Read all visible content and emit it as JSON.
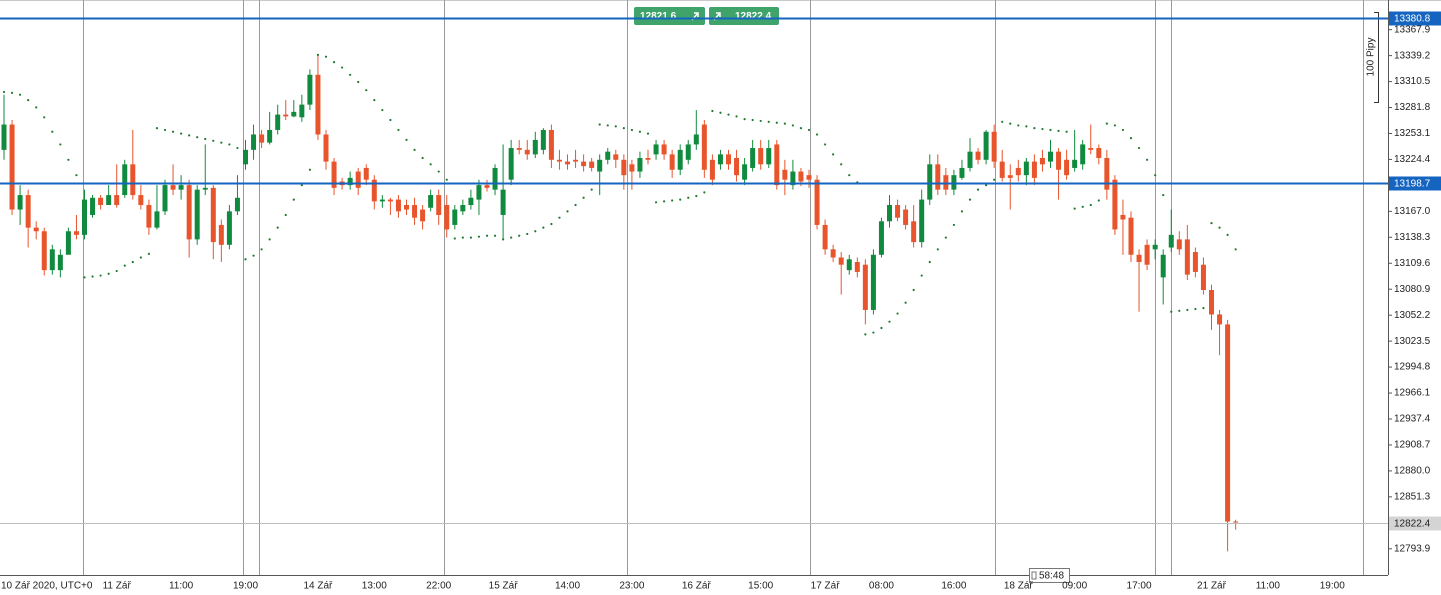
{
  "chart_data": {
    "type": "candlestick",
    "up_color": "#108a3e",
    "down_color": "#e8542b",
    "sar_color": "#1f7a30",
    "ylim": [
      12764.9,
      13400.7
    ],
    "yticks": [
      13367.9,
      13339.2,
      13310.5,
      13281.8,
      13253.1,
      13224.4,
      {
        "value": 13167,
        "label": "13167.0"
      },
      13138.3,
      13109.6,
      13080.9,
      13052.2,
      13023.5,
      12994.8,
      12966.1,
      12937.4,
      12908.7,
      {
        "value": 12880,
        "label": "12880.0"
      },
      12851.3,
      12793.9
    ],
    "hlines": [
      {
        "value": 13380.8,
        "color": "#1565c0"
      },
      {
        "value": 13198.7,
        "color": "#1565c0"
      }
    ],
    "current_price": {
      "value": 12822.4,
      "color": "#bdbdbd"
    },
    "quote_panel": {
      "bid": "12821.6",
      "ask": "12822.4"
    },
    "countdown": "58:48",
    "scale_label": "100 Pipy",
    "categories": [
      "10 Zář 2020, UTC+0",
      null,
      null,
      null,
      null,
      null,
      null,
      null,
      null,
      null,
      null,
      null,
      null,
      null,
      "11 Zář",
      null,
      null,
      null,
      null,
      null,
      null,
      null,
      "11:00",
      null,
      null,
      null,
      null,
      null,
      null,
      null,
      "19:00",
      null,
      null,
      null,
      null,
      null,
      null,
      null,
      null,
      "14 Zář",
      null,
      null,
      null,
      null,
      null,
      null,
      "13:00",
      null,
      null,
      null,
      null,
      null,
      null,
      null,
      "22:00",
      null,
      null,
      null,
      null,
      null,
      null,
      null,
      "15 Zář",
      null,
      null,
      null,
      null,
      null,
      null,
      null,
      "14:00",
      null,
      null,
      null,
      null,
      null,
      null,
      null,
      "23:00",
      null,
      null,
      null,
      null,
      null,
      null,
      null,
      "16 Zář",
      null,
      null,
      null,
      null,
      null,
      null,
      null,
      "15:00",
      null,
      null,
      null,
      null,
      null,
      null,
      null,
      "17 Zář",
      null,
      null,
      null,
      null,
      null,
      null,
      "08:00",
      null,
      null,
      null,
      null,
      null,
      null,
      null,
      null,
      "16:00",
      null,
      null,
      null,
      null,
      null,
      null,
      null,
      "18 Zář",
      null,
      null,
      null,
      null,
      null,
      null,
      "09:00",
      null,
      null,
      null,
      null,
      null,
      null,
      null,
      "17:00",
      null,
      null,
      null,
      null,
      null,
      null,
      null,
      null,
      "21 Zář",
      null,
      null,
      null,
      null,
      null,
      null,
      "11:00",
      null,
      null,
      null,
      null,
      null,
      null,
      null,
      "19:00"
    ],
    "candles": [
      [
        13235,
        13296,
        13224,
        13263
      ],
      [
        13263,
        13268,
        13163,
        13169
      ],
      [
        13169,
        13196,
        13152,
        13185
      ],
      [
        13185,
        13191,
        13127,
        13149
      ],
      [
        13149,
        13156,
        13136,
        13145
      ],
      [
        13145,
        13149,
        13096,
        13102
      ],
      [
        13102,
        13130,
        13097,
        13125
      ],
      [
        13102,
        13125,
        13094,
        13119
      ],
      [
        13119,
        13149,
        13140,
        13145
      ],
      [
        13145,
        13163,
        13136,
        13141
      ],
      [
        13141,
        13191,
        13136,
        13180
      ],
      [
        13163,
        13185,
        13160,
        13182
      ],
      [
        13182,
        13185,
        13169,
        13174
      ],
      [
        13174,
        13196,
        13174,
        13185
      ],
      [
        13185,
        13219,
        13171,
        13174
      ],
      [
        13185,
        13224,
        13182,
        13219
      ],
      [
        13219,
        13257,
        13180,
        13185
      ],
      [
        13185,
        13196,
        13169,
        13174
      ],
      [
        13174,
        13180,
        13141,
        13149
      ],
      [
        13149,
        13196,
        13147,
        13167
      ],
      [
        13167,
        13202,
        13163,
        13196
      ],
      [
        13196,
        13219,
        13185,
        13191
      ],
      [
        13191,
        13207,
        13180,
        13196
      ],
      [
        13196,
        13202,
        13116,
        13136
      ],
      [
        13136,
        13196,
        13130,
        13191
      ],
      [
        13191,
        13241,
        13185,
        13193
      ],
      [
        13193,
        13196,
        13114,
        13133
      ],
      [
        13152,
        13158,
        13111,
        13130
      ],
      [
        13130,
        13174,
        13125,
        13167
      ],
      [
        13167,
        13207,
        13163,
        13182
      ],
      [
        13219,
        13246,
        13213,
        13235
      ],
      [
        13235,
        13263,
        13224,
        13252
      ],
      [
        13252,
        13257,
        13237,
        13243
      ],
      [
        13243,
        13277,
        13241,
        13257
      ],
      [
        13257,
        13285,
        13252,
        13274
      ],
      [
        13274,
        13290,
        13268,
        13272
      ],
      [
        13272,
        13290,
        13271,
        13277
      ],
      [
        13271,
        13296,
        13266,
        13285
      ],
      [
        13285,
        13324,
        13279,
        13318
      ],
      [
        13318,
        13340,
        13246,
        13252
      ],
      [
        13252,
        13257,
        13213,
        13222
      ],
      [
        13222,
        13226,
        13185,
        13193
      ],
      [
        13200,
        13204,
        13191,
        13196
      ],
      [
        13196,
        13211,
        13191,
        13204
      ],
      [
        13211,
        13215,
        13185,
        13193
      ],
      [
        13215,
        13219,
        13196,
        13202
      ],
      [
        13202,
        13207,
        13169,
        13178
      ],
      [
        13178,
        13185,
        13171,
        13180
      ],
      [
        13180,
        13182,
        13163,
        13178
      ],
      [
        13180,
        13185,
        13160,
        13167
      ],
      [
        13174,
        13180,
        13163,
        13169
      ],
      [
        13174,
        13182,
        13152,
        13160
      ],
      [
        13169,
        13174,
        13147,
        13156
      ],
      [
        13171,
        13191,
        13167,
        13185
      ],
      [
        13185,
        13191,
        13152,
        13163
      ],
      [
        13174,
        13185,
        13138,
        13147
      ],
      [
        13152,
        13174,
        13147,
        13169
      ],
      [
        13167,
        13180,
        13163,
        13174
      ],
      [
        13174,
        13191,
        13169,
        13182
      ],
      [
        13180,
        13202,
        13163,
        13196
      ],
      [
        13196,
        13202,
        13189,
        13193
      ],
      [
        13191,
        13219,
        13185,
        13215
      ],
      [
        13163,
        13241,
        13136,
        13191
      ],
      [
        13202,
        13246,
        13196,
        13237
      ],
      [
        13237,
        13246,
        13230,
        13235
      ],
      [
        13235,
        13246,
        13224,
        13230
      ],
      [
        13230,
        13255,
        13226,
        13246
      ],
      [
        13235,
        13259,
        13230,
        13257
      ],
      [
        13257,
        13263,
        13215,
        13224
      ],
      [
        13224,
        13235,
        13213,
        13222
      ],
      [
        13222,
        13230,
        13213,
        13219
      ],
      [
        13224,
        13235,
        13215,
        13222
      ],
      [
        13222,
        13230,
        13211,
        13217
      ],
      [
        13222,
        13226,
        13211,
        13215
      ],
      [
        13211,
        13230,
        13185,
        13224
      ],
      [
        13224,
        13237,
        13219,
        13233
      ],
      [
        13230,
        13235,
        13215,
        13224
      ],
      [
        13224,
        13230,
        13191,
        13207
      ],
      [
        13219,
        13224,
        13191,
        13211
      ],
      [
        13211,
        13233,
        13204,
        13226
      ],
      [
        13226,
        13235,
        13219,
        13224
      ],
      [
        13230,
        13246,
        13224,
        13241
      ],
      [
        13241,
        13246,
        13224,
        13230
      ],
      [
        13230,
        13235,
        13204,
        13213
      ],
      [
        13213,
        13241,
        13207,
        13235
      ],
      [
        13224,
        13246,
        13219,
        13241
      ],
      [
        13241,
        13279,
        13235,
        13252
      ],
      [
        13263,
        13268,
        13204,
        13213
      ],
      [
        13224,
        13230,
        13196,
        13202
      ],
      [
        13219,
        13235,
        13213,
        13230
      ],
      [
        13230,
        13235,
        13213,
        13219
      ],
      [
        13226,
        13235,
        13200,
        13207
      ],
      [
        13202,
        13226,
        13196,
        13219
      ],
      [
        13215,
        13246,
        13211,
        13237
      ],
      [
        13237,
        13246,
        13213,
        13219
      ],
      [
        13219,
        13246,
        13215,
        13237
      ],
      [
        13241,
        13246,
        13191,
        13196
      ],
      [
        13213,
        13224,
        13185,
        13202
      ],
      [
        13196,
        13224,
        13191,
        13211
      ],
      [
        13211,
        13215,
        13195,
        13200
      ],
      [
        13207,
        13213,
        13193,
        13202
      ],
      [
        13202,
        13207,
        13147,
        13152
      ],
      [
        13152,
        13158,
        13119,
        13125
      ],
      [
        13125,
        13130,
        13111,
        13116
      ],
      [
        13116,
        13122,
        13075,
        13108
      ],
      [
        13102,
        13119,
        13097,
        13114
      ],
      [
        13111,
        13116,
        13094,
        13100
      ],
      [
        13108,
        13114,
        13042,
        13058
      ],
      [
        13058,
        13125,
        13053,
        13119
      ],
      [
        13119,
        13160,
        13116,
        13156
      ],
      [
        13156,
        13185,
        13149,
        13174
      ],
      [
        13174,
        13180,
        13156,
        13160
      ],
      [
        13169,
        13174,
        13147,
        13152
      ],
      [
        13156,
        13174,
        13127,
        13133
      ],
      [
        13133,
        13191,
        13127,
        13180
      ],
      [
        13180,
        13230,
        13174,
        13219
      ],
      [
        13219,
        13230,
        13185,
        13191
      ],
      [
        13207,
        13215,
        13185,
        13191
      ],
      [
        13191,
        13213,
        13185,
        13207
      ],
      [
        13204,
        13224,
        13202,
        13215
      ],
      [
        13215,
        13248,
        13211,
        13233
      ],
      [
        13233,
        13237,
        13219,
        13224
      ],
      [
        13224,
        13257,
        13219,
        13255
      ],
      [
        13255,
        13263,
        13215,
        13222
      ],
      [
        13222,
        13235,
        13200,
        13204
      ],
      [
        13207,
        13219,
        13169,
        13204
      ],
      [
        13215,
        13224,
        13200,
        13207
      ],
      [
        13207,
        13226,
        13196,
        13222
      ],
      [
        13222,
        13230,
        13196,
        13204
      ],
      [
        13226,
        13235,
        13211,
        13219
      ],
      [
        13222,
        13246,
        13215,
        13233
      ],
      [
        13233,
        13237,
        13180,
        13213
      ],
      [
        13224,
        13235,
        13202,
        13207
      ],
      [
        13215,
        13257,
        13211,
        13224
      ],
      [
        13219,
        13246,
        13213,
        13241
      ],
      [
        13237,
        13263,
        13230,
        13235
      ],
      [
        13237,
        13241,
        13219,
        13226
      ],
      [
        13226,
        13235,
        13180,
        13191
      ],
      [
        13202,
        13207,
        13141,
        13147
      ],
      [
        13163,
        13180,
        13119,
        13158
      ],
      [
        13160,
        13167,
        13111,
        13119
      ],
      [
        13119,
        13125,
        13056,
        13111
      ],
      [
        13130,
        13136,
        13102,
        13108
      ],
      [
        13125,
        13136,
        13114,
        13130
      ],
      [
        13094,
        13125,
        13064,
        13119
      ],
      [
        13127,
        13169,
        13122,
        13141
      ],
      [
        13136,
        13145,
        13119,
        13125
      ],
      [
        13136,
        13152,
        13091,
        13097
      ],
      [
        13122,
        13127,
        13094,
        13100
      ],
      [
        13108,
        13116,
        13075,
        13080
      ],
      [
        13080,
        13086,
        13036,
        13053
      ],
      [
        13053,
        13058,
        13008,
        13042
      ],
      [
        13042,
        13047,
        12791,
        12824
      ],
      [
        12824,
        12826,
        12815,
        12823
      ],
      null,
      null,
      null,
      null,
      null,
      null,
      null,
      null,
      null,
      null,
      null,
      null
    ],
    "sar": [
      13299,
      13298,
      13296,
      13290,
      13282,
      13271,
      13255,
      13241,
      13224,
      13207,
      13094,
      13095,
      13096,
      13098,
      13101,
      13107,
      13111,
      13116,
      13120,
      13259,
      13257,
      13255,
      13253,
      13251,
      13249,
      13247,
      13245,
      13243,
      13241,
      13237,
      13114,
      13118,
      13125,
      13136,
      13149,
      13163,
      13180,
      13196,
      13213,
      13340,
      13338,
      13332,
      13326,
      13318,
      13310,
      13301,
      13290,
      13279,
      13268,
      13257,
      13246,
      13235,
      13226,
      13219,
      13211,
      13202,
      13137,
      13138,
      13138,
      13139,
      13140,
      13140,
      13136,
      13138,
      13140,
      13142,
      13145,
      13149,
      13153,
      13160,
      13167,
      13174,
      13182,
      13191,
      13263,
      13262,
      13261,
      13259,
      13257,
      13255,
      13253,
      13177,
      13178,
      13179,
      13180,
      13182,
      13184,
      13188,
      13278,
      13276,
      13274,
      13272,
      13269,
      13268,
      13267,
      13266,
      13265,
      13264,
      13262,
      13259,
      13257,
      13252,
      13241,
      13230,
      13219,
      13207,
      13199,
      13031,
      13033,
      13038,
      13045,
      13054,
      13066,
      13080,
      13096,
      13111,
      13125,
      13138,
      13152,
      13167,
      13180,
      13191,
      13196,
      13202,
      13266,
      13264,
      13262,
      13261,
      13259,
      13258,
      13257,
      13256,
      13255,
      13170,
      13172,
      13174,
      13179,
      13264,
      13262,
      13257,
      13248,
      13237,
      13224,
      13207,
      13185,
      13056,
      13057,
      13058,
      13059,
      13060,
      13154,
      13149,
      13141,
      13125,
      null,
      null,
      null,
      null,
      null,
      null,
      null,
      null,
      null,
      null,
      null,
      null
    ]
  }
}
